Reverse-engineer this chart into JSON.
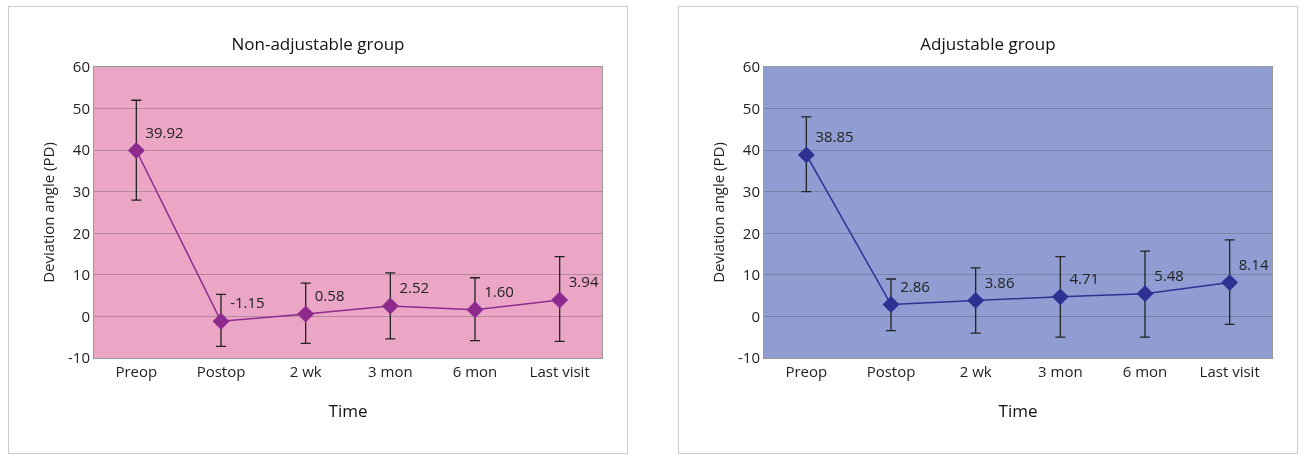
{
  "chart_data": [
    {
      "type": "line",
      "title": "Non-adjustable group",
      "xlabel": "Time",
      "ylabel": "Deviation angle (PD)",
      "categories": [
        "Preop",
        "Postop",
        "2 wk",
        "3 mon",
        "6 mon",
        "Last visit"
      ],
      "series": [
        {
          "color": "#8e2a8e",
          "values": [
            39.92,
            -1.15,
            0.58,
            2.52,
            1.6,
            3.94
          ],
          "value_labels": [
            "39.92",
            "-1.15",
            "0.58",
            "2.52",
            "1.60",
            "3.94"
          ],
          "errors": [
            [
              28,
              52
            ],
            [
              -7.2,
              5.3
            ],
            [
              -6.5,
              8
            ],
            [
              -5.4,
              10.5
            ],
            [
              -5.8,
              9.3
            ],
            [
              -6,
              14.4
            ]
          ]
        }
      ],
      "ylim": [
        -10,
        60
      ],
      "yticks": [
        -10,
        0,
        10,
        20,
        30,
        40,
        50,
        60
      ],
      "grid": "y",
      "marker": "diamond",
      "line_style": "solid"
    },
    {
      "type": "line",
      "title": "Adjustable group",
      "xlabel": "Time",
      "ylabel": "Deviation angle (PD)",
      "categories": [
        "Preop",
        "Postop",
        "2 wk",
        "3 mon",
        "6 mon",
        "Last visit"
      ],
      "series": [
        {
          "color": "#2e3192",
          "values": [
            38.85,
            2.86,
            3.86,
            4.71,
            5.48,
            8.14
          ],
          "value_labels": [
            "38.85",
            "2.86",
            "3.86",
            "4.71",
            "5.48",
            "8.14"
          ],
          "errors": [
            [
              30,
              48
            ],
            [
              -3.4,
              9
            ],
            [
              -4,
              11.7
            ],
            [
              -5,
              14.4
            ],
            [
              -5,
              15.7
            ],
            [
              -1.9,
              18.4
            ]
          ]
        }
      ],
      "ylim": [
        -10,
        60
      ],
      "yticks": [
        -10,
        0,
        10,
        20,
        30,
        40,
        50,
        60
      ],
      "grid": "y",
      "marker": "diamond",
      "line_style": "solid"
    }
  ]
}
